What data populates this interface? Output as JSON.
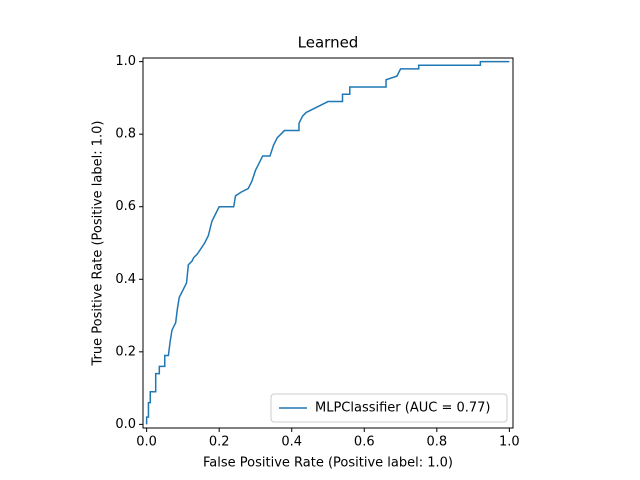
{
  "chart_data": {
    "type": "line",
    "title": "Learned",
    "x_label": "False Positive Rate (Positive label: 1.0)",
    "y_label": "True Positive Rate (Positive label: 1.0)",
    "xlim": [
      -0.01,
      1.01
    ],
    "ylim": [
      -0.01,
      1.01
    ],
    "xticks": [
      {
        "value": 0,
        "label": "0.0"
      },
      0.2,
      0.4,
      0.6,
      0.8,
      {
        "value": 1,
        "label": "1.0"
      }
    ],
    "yticks": [
      {
        "value": 0,
        "label": "0.0"
      },
      0.2,
      0.4,
      0.6,
      0.8,
      {
        "value": 1,
        "label": "1.0"
      }
    ],
    "grid": false,
    "legend": "lower right",
    "series": [
      {
        "name": "MLPClassifier (AUC = 0.77)",
        "color": "#1f77b4",
        "x": [
          0,
          0,
          0.005,
          0.005,
          0.01,
          0.01,
          0.025,
          0.025,
          0.035,
          0.035,
          0.05,
          0.05,
          0.06,
          0.065,
          0.07,
          0.08,
          0.085,
          0.09,
          0.1,
          0.11,
          0.115,
          0.125,
          0.13,
          0.14,
          0.16,
          0.17,
          0.18,
          0.19,
          0.2,
          0.24,
          0.245,
          0.26,
          0.28,
          0.29,
          0.3,
          0.31,
          0.32,
          0.34,
          0.35,
          0.36,
          0.37,
          0.38,
          0.42,
          0.42,
          0.43,
          0.44,
          0.46,
          0.48,
          0.5,
          0.54,
          0.54,
          0.56,
          0.56,
          0.66,
          0.66,
          0.69,
          0.7,
          0.75,
          0.75,
          0.92,
          0.92,
          1.0
        ],
        "values": [
          0,
          0.02,
          0.02,
          0.06,
          0.06,
          0.09,
          0.09,
          0.14,
          0.14,
          0.16,
          0.16,
          0.19,
          0.19,
          0.23,
          0.26,
          0.28,
          0.32,
          0.35,
          0.37,
          0.39,
          0.44,
          0.45,
          0.46,
          0.47,
          0.5,
          0.52,
          0.56,
          0.58,
          0.6,
          0.6,
          0.63,
          0.64,
          0.65,
          0.67,
          0.7,
          0.72,
          0.74,
          0.74,
          0.77,
          0.79,
          0.8,
          0.81,
          0.81,
          0.83,
          0.85,
          0.86,
          0.87,
          0.88,
          0.89,
          0.89,
          0.91,
          0.91,
          0.93,
          0.93,
          0.95,
          0.96,
          0.98,
          0.98,
          0.99,
          0.99,
          1.0,
          1.0
        ]
      }
    ]
  }
}
